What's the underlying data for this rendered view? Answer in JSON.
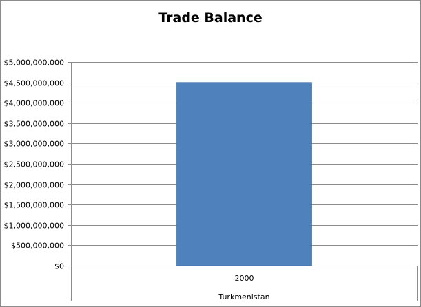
{
  "chart_data": {
    "type": "bar",
    "title": "Trade Balance",
    "categories": [
      "2000"
    ],
    "category_group_label": "Turkmenistan",
    "values": [
      4500000000
    ],
    "ylim": [
      0,
      5000000000
    ],
    "yticks": [
      0,
      500000000,
      1000000000,
      1500000000,
      2000000000,
      2500000000,
      3000000000,
      3500000000,
      4000000000,
      4500000000,
      5000000000
    ],
    "ytick_labels": [
      "$0",
      "$500,000,000",
      "$1,000,000,000",
      "$1,500,000,000",
      "$2,000,000,000",
      "$2,500,000,000",
      "$3,000,000,000",
      "$3,500,000,000",
      "$4,000,000,000",
      "$4,500,000,000",
      "$5,000,000,000"
    ],
    "grid": true,
    "legend": "none",
    "colors": {
      "bar": "#4f81bd",
      "bar_edge": "#3a6a9f",
      "grid": "#8c8c8c",
      "axis": "#8c8c8c",
      "text": "#000000"
    }
  }
}
